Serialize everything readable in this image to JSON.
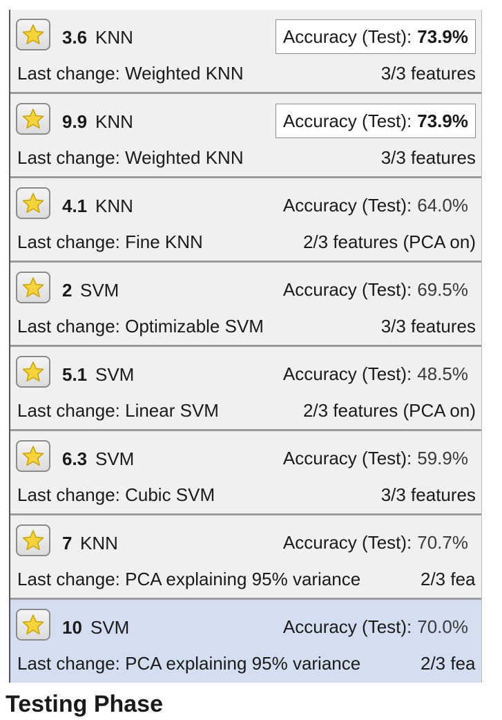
{
  "models": [
    {
      "number": "3.6",
      "type": "KNN",
      "accuracy_label": "Accuracy (Test):",
      "accuracy": "73.9%",
      "best": true,
      "last_change": "Last change: Weighted KNN",
      "features": "3/3 features",
      "selected": false
    },
    {
      "number": "9.9",
      "type": "KNN",
      "accuracy_label": "Accuracy (Test):",
      "accuracy": "73.9%",
      "best": true,
      "last_change": "Last change: Weighted KNN",
      "features": "3/3 features",
      "selected": false
    },
    {
      "number": "4.1",
      "type": "KNN",
      "accuracy_label": "Accuracy (Test):",
      "accuracy": "64.0%",
      "best": false,
      "last_change": "Last change: Fine KNN",
      "features": "2/3 features (PCA on)",
      "selected": false
    },
    {
      "number": "2",
      "type": "SVM",
      "accuracy_label": "Accuracy (Test):",
      "accuracy": "69.5%",
      "best": false,
      "last_change": "Last change: Optimizable SVM",
      "features": "3/3 features",
      "selected": false
    },
    {
      "number": "5.1",
      "type": "SVM",
      "accuracy_label": "Accuracy (Test):",
      "accuracy": "48.5%",
      "best": false,
      "last_change": "Last change: Linear SVM",
      "features": "2/3 features (PCA on)",
      "selected": false
    },
    {
      "number": "6.3",
      "type": "SVM",
      "accuracy_label": "Accuracy (Test):",
      "accuracy": "59.9%",
      "best": false,
      "last_change": "Last change: Cubic SVM",
      "features": "3/3 features",
      "selected": false
    },
    {
      "number": "7",
      "type": "KNN",
      "accuracy_label": "Accuracy (Test):",
      "accuracy": "70.7%",
      "best": false,
      "last_change": "Last change: PCA explaining 95% variance",
      "features": "2/3 fea",
      "selected": false
    },
    {
      "number": "10",
      "type": "SVM",
      "accuracy_label": "Accuracy (Test):",
      "accuracy": "70.0%",
      "best": false,
      "last_change": "Last change: PCA explaining 95% variance",
      "features": "2/3 fea",
      "selected": true
    }
  ],
  "section_title": "Testing Phase",
  "colors": {
    "row_background": "#f0f0f0",
    "selected_background": "#d3dff0",
    "star_fill": "#f5d33a",
    "star_stroke": "#c9a100"
  },
  "icons": {
    "favorite": "star-icon"
  }
}
